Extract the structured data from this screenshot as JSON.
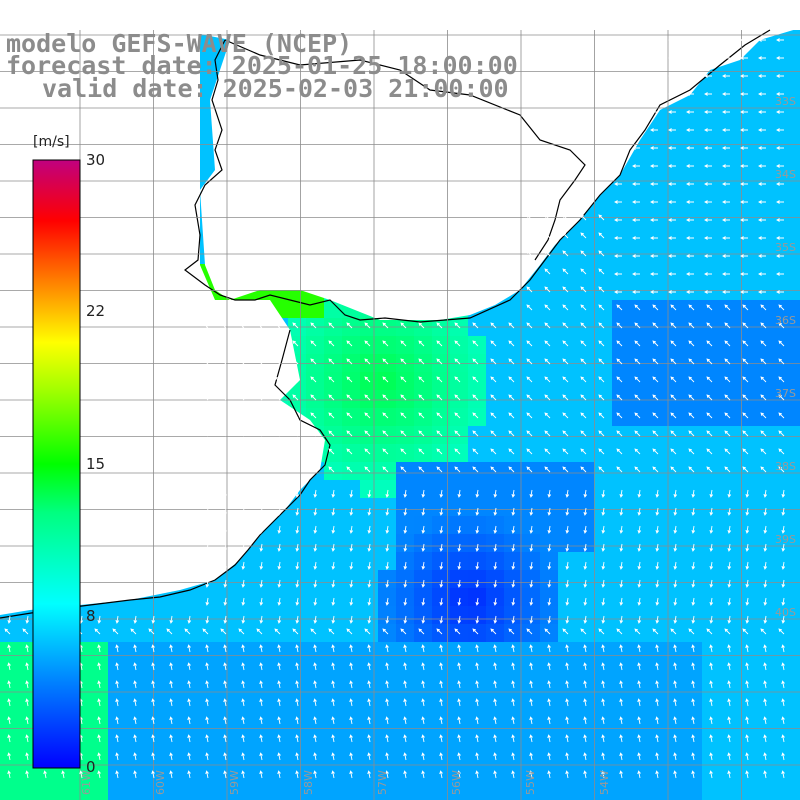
{
  "map": {
    "title_model": "modelo GEFS-WAVE (NCEP)",
    "title_forecast": "forecast date: 2025-01-25 18:00:00",
    "title_valid": "valid date: 2025-02-03 21:00:00",
    "variable": "wind speed",
    "units": "[m/s]",
    "colorbar": {
      "min": 0,
      "max": 30,
      "ticks": [
        "30",
        "22",
        "15",
        "8",
        "0"
      ],
      "tick_values": [
        30,
        22,
        15,
        8,
        0
      ],
      "colors": [
        "#0000ff",
        "#0080ff",
        "#00ffff",
        "#00ff00",
        "#ffff00",
        "#ff8000",
        "#ff0000",
        "#c0007f"
      ]
    },
    "lat_labels": [
      "33S",
      "34S",
      "35S",
      "36S",
      "37S",
      "38S",
      "39S",
      "40S"
    ],
    "lon_labels": [
      "61W",
      "60W",
      "59W",
      "58W",
      "57W",
      "56W",
      "55W",
      "54W"
    ],
    "grid_color": "#8c8c8c",
    "land_color": "#ffffff",
    "arrow_color": "#ffffff"
  }
}
